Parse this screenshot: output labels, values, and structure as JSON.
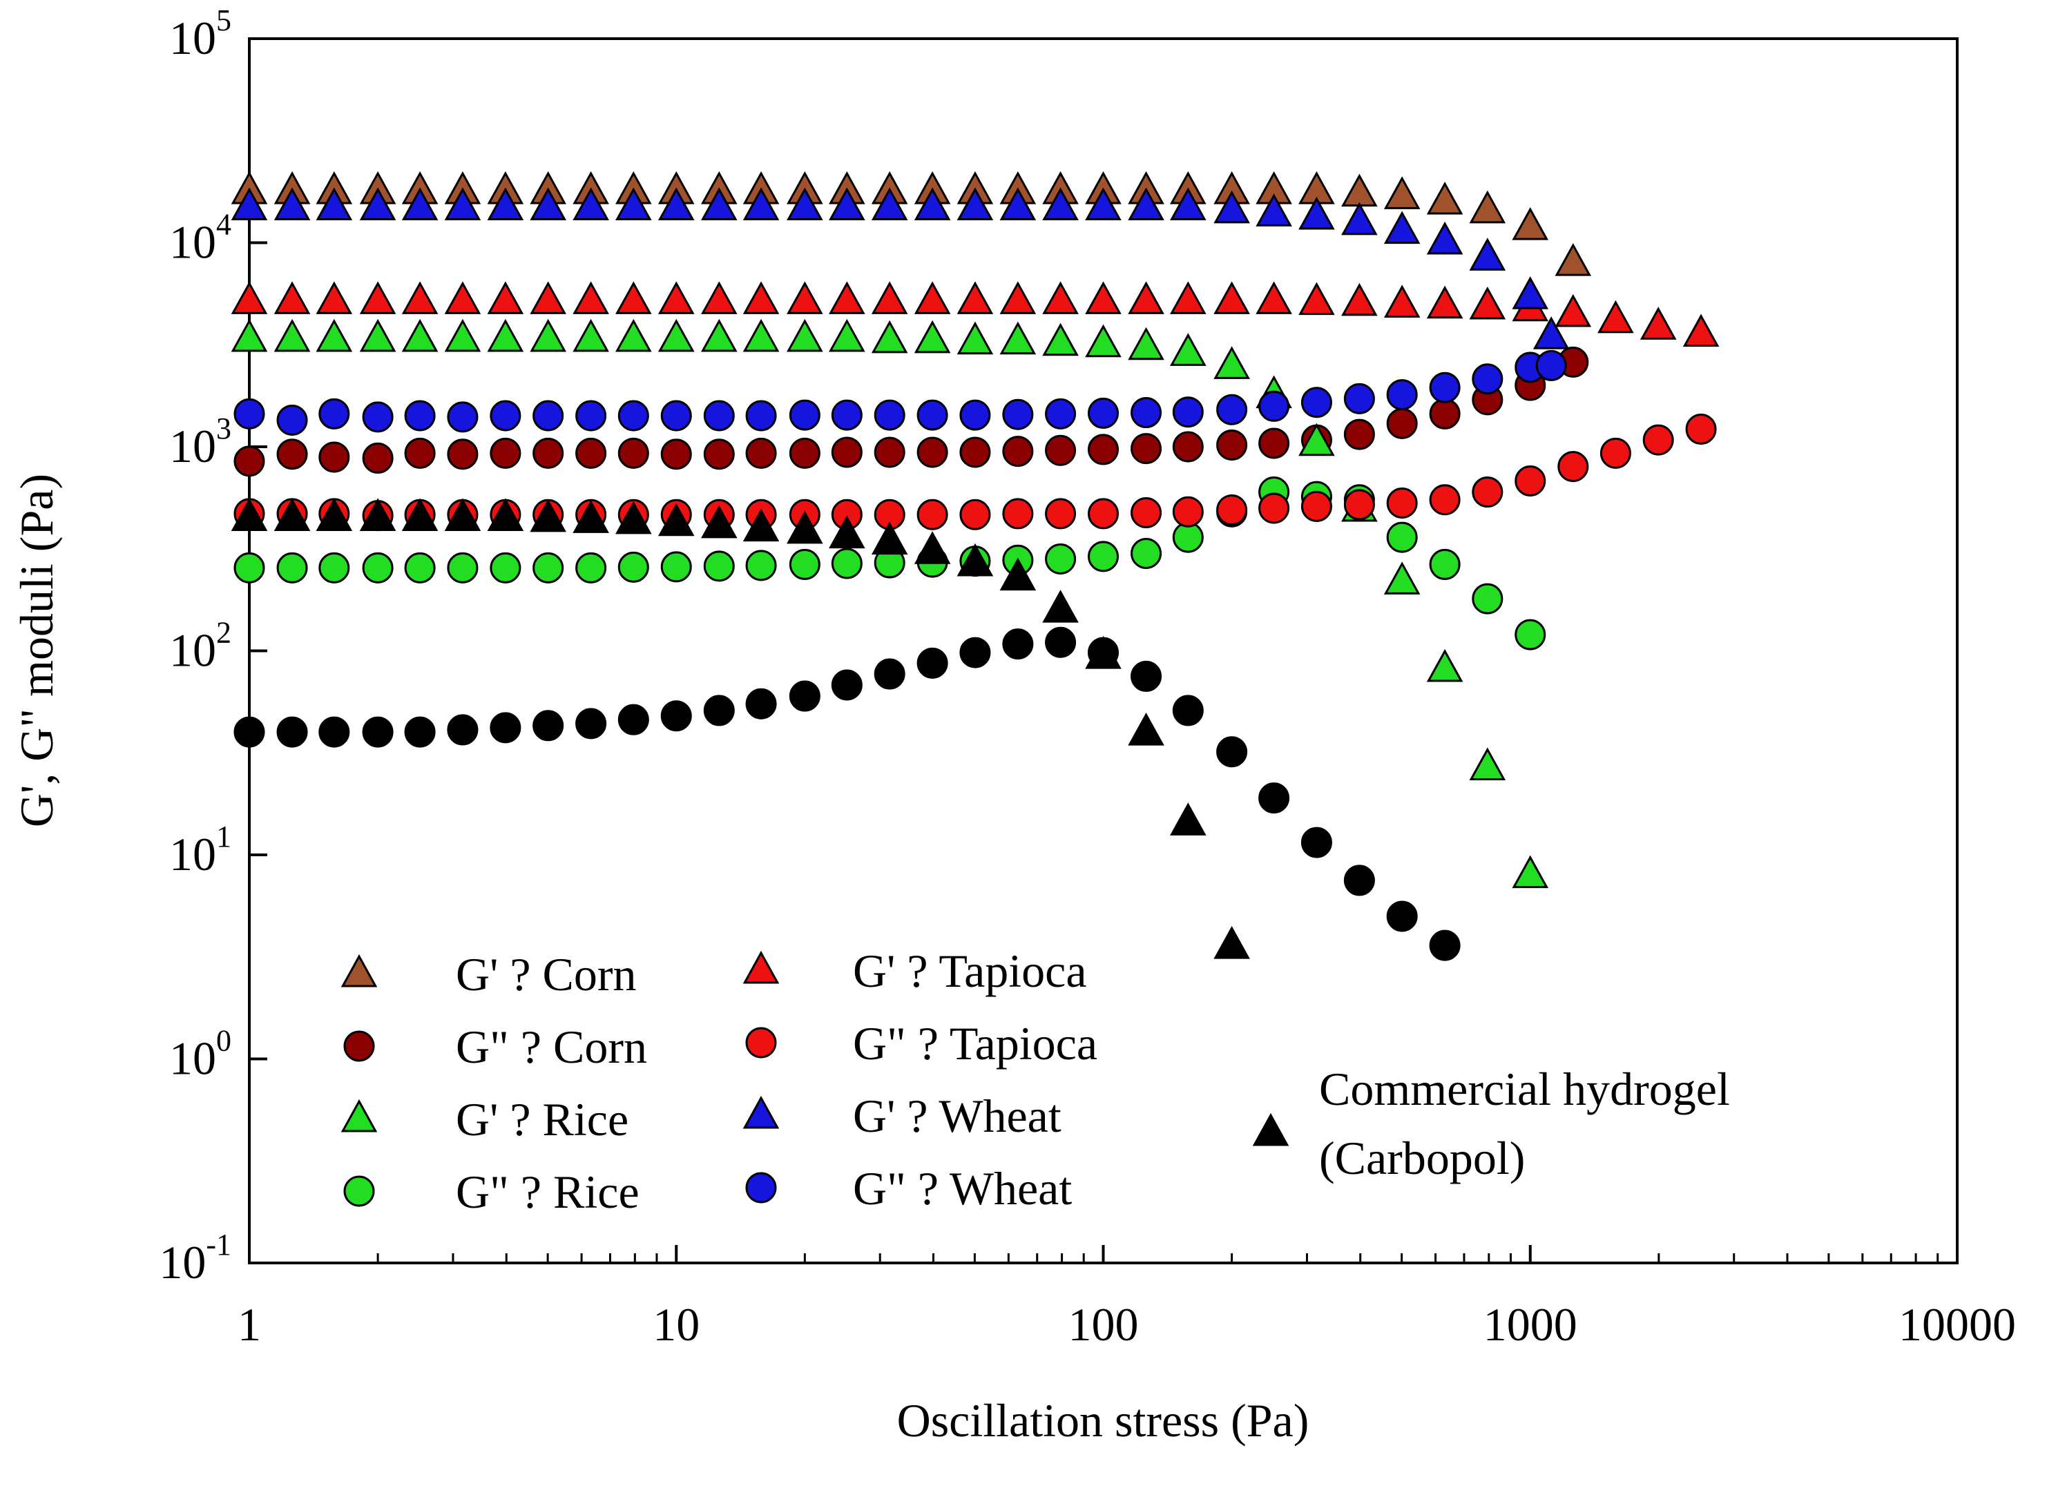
{
  "chart_data": {
    "type": "scatter",
    "x_scale": "log",
    "y_scale": "log",
    "xlabel": "Oscillation stress (Pa)",
    "ylabel": "G', G\" moduli (Pa)",
    "xlim": [
      1,
      10000
    ],
    "ylim": [
      0.1,
      100000
    ],
    "x_ticks": [
      {
        "value": 1,
        "label": "1"
      },
      {
        "value": 10,
        "label": "10"
      },
      {
        "value": 100,
        "label": "100"
      },
      {
        "value": 1000,
        "label": "1000"
      },
      {
        "value": 10000,
        "label": "10000"
      }
    ],
    "y_ticks": [
      {
        "value": 0.1,
        "base": "10",
        "exp": "-1"
      },
      {
        "value": 1,
        "base": "10",
        "exp": "0"
      },
      {
        "value": 10,
        "base": "10",
        "exp": "1"
      },
      {
        "value": 100,
        "base": "10",
        "exp": "2"
      },
      {
        "value": 1000,
        "base": "10",
        "exp": "3"
      },
      {
        "value": 10000,
        "base": "10",
        "exp": "4"
      },
      {
        "value": 100000,
        "base": "10",
        "exp": "5"
      }
    ],
    "grid": false,
    "legend_position": "bottom-left",
    "series": [
      {
        "name": "G' ? Corn",
        "marker": "triangle",
        "color": "#a0522d",
        "x": [
          1,
          1.26,
          1.58,
          2,
          2.51,
          3.16,
          3.98,
          5.01,
          6.31,
          7.94,
          10,
          12.6,
          15.8,
          20,
          25.1,
          31.6,
          39.8,
          50.1,
          63.1,
          79.4,
          100,
          126,
          158,
          200,
          251,
          316,
          398,
          501,
          631,
          794,
          1000,
          1260
        ],
        "y": [
          18000,
          18000,
          18000,
          18000,
          18000,
          18000,
          18000,
          18000,
          18000,
          18000,
          18000,
          18000,
          18000,
          18000,
          18000,
          18000,
          18000,
          18000,
          18000,
          18000,
          18000,
          18000,
          18000,
          18000,
          18000,
          18000,
          17500,
          17000,
          16000,
          14500,
          12000,
          8000
        ]
      },
      {
        "name": "G\" ? Corn",
        "marker": "circle",
        "color": "#8b0000",
        "x": [
          1,
          1.26,
          1.58,
          2,
          2.51,
          3.16,
          3.98,
          5.01,
          6.31,
          7.94,
          10,
          12.6,
          15.8,
          20,
          25.1,
          31.6,
          39.8,
          50.1,
          63.1,
          79.4,
          100,
          126,
          158,
          200,
          251,
          316,
          398,
          501,
          631,
          794,
          1000,
          1260
        ],
        "y": [
          850,
          920,
          890,
          880,
          930,
          920,
          930,
          930,
          930,
          930,
          920,
          920,
          930,
          930,
          940,
          940,
          940,
          940,
          950,
          960,
          970,
          980,
          1000,
          1020,
          1040,
          1080,
          1150,
          1300,
          1450,
          1700,
          2000,
          2600
        ]
      },
      {
        "name": "G' ? Rice",
        "marker": "triangle",
        "color": "#22dd22",
        "x": [
          1,
          1.26,
          1.58,
          2,
          2.51,
          3.16,
          3.98,
          5.01,
          6.31,
          7.94,
          10,
          12.6,
          15.8,
          20,
          25.1,
          31.6,
          39.8,
          50.1,
          63.1,
          79.4,
          100,
          126,
          158,
          200,
          251,
          316,
          398,
          501,
          631,
          794,
          1000
        ],
        "y": [
          3400,
          3400,
          3400,
          3400,
          3400,
          3400,
          3400,
          3400,
          3400,
          3400,
          3400,
          3400,
          3400,
          3400,
          3400,
          3350,
          3350,
          3300,
          3300,
          3250,
          3200,
          3100,
          2900,
          2500,
          1800,
          1050,
          500,
          220,
          82,
          27,
          8
        ]
      },
      {
        "name": "G\" ? Rice",
        "marker": "circle",
        "color": "#22dd22",
        "x": [
          1,
          1.26,
          1.58,
          2,
          2.51,
          3.16,
          3.98,
          5.01,
          6.31,
          7.94,
          10,
          12.6,
          15.8,
          20,
          25.1,
          31.6,
          39.8,
          50.1,
          63.1,
          79.4,
          100,
          126,
          158,
          200,
          251,
          316,
          398,
          501,
          631,
          794,
          1000
        ],
        "y": [
          255,
          255,
          255,
          255,
          255,
          255,
          255,
          255,
          255,
          257,
          258,
          260,
          262,
          265,
          268,
          270,
          272,
          275,
          278,
          282,
          290,
          300,
          360,
          480,
          600,
          570,
          550,
          360,
          265,
          180,
          120
        ]
      },
      {
        "name": "G' ? Tapioca",
        "marker": "triangle",
        "color": "#ee1111",
        "x": [
          1,
          1.26,
          1.58,
          2,
          2.51,
          3.16,
          3.98,
          5.01,
          6.31,
          7.94,
          10,
          12.6,
          15.8,
          20,
          25.1,
          31.6,
          39.8,
          50.1,
          63.1,
          79.4,
          100,
          126,
          158,
          200,
          251,
          316,
          398,
          501,
          631,
          794,
          1000,
          1260,
          1585,
          1995,
          2512
        ],
        "y": [
          5200,
          5200,
          5200,
          5200,
          5200,
          5200,
          5200,
          5200,
          5200,
          5200,
          5200,
          5200,
          5200,
          5200,
          5200,
          5200,
          5200,
          5200,
          5200,
          5200,
          5200,
          5200,
          5200,
          5200,
          5200,
          5150,
          5100,
          5000,
          4950,
          4900,
          4800,
          4500,
          4200,
          3900,
          3600
        ]
      },
      {
        "name": "G\" ? Tapioca",
        "marker": "circle",
        "color": "#ee1111",
        "x": [
          1,
          1.26,
          1.58,
          2,
          2.51,
          3.16,
          3.98,
          5.01,
          6.31,
          7.94,
          10,
          12.6,
          15.8,
          20,
          25.1,
          31.6,
          39.8,
          50.1,
          63.1,
          79.4,
          100,
          126,
          158,
          200,
          251,
          316,
          398,
          501,
          631,
          794,
          1000,
          1260,
          1585,
          1995,
          2512
        ],
        "y": [
          470,
          470,
          470,
          460,
          465,
          465,
          465,
          465,
          465,
          465,
          465,
          465,
          465,
          465,
          465,
          465,
          465,
          465,
          470,
          470,
          470,
          475,
          480,
          490,
          500,
          510,
          520,
          530,
          550,
          600,
          680,
          800,
          930,
          1080,
          1220
        ]
      },
      {
        "name": "G' ? Wheat",
        "marker": "triangle",
        "color": "#1515dd",
        "x": [
          1,
          1.26,
          1.58,
          2,
          2.51,
          3.16,
          3.98,
          5.01,
          6.31,
          7.94,
          10,
          12.6,
          15.8,
          20,
          25.1,
          31.6,
          39.8,
          50.1,
          63.1,
          79.4,
          100,
          126,
          158,
          200,
          251,
          316,
          398,
          501,
          631,
          794,
          1000,
          1120
        ],
        "y": [
          15000,
          15000,
          15000,
          15000,
          15000,
          15000,
          15000,
          15000,
          15000,
          15000,
          15000,
          15000,
          15000,
          15000,
          15000,
          15000,
          15000,
          15000,
          15000,
          15000,
          15000,
          15000,
          15000,
          14500,
          14000,
          13500,
          12700,
          11500,
          10200,
          8500,
          5500,
          3500
        ]
      },
      {
        "name": "G\" ? Wheat",
        "marker": "circle",
        "color": "#1515dd",
        "x": [
          1,
          1.26,
          1.58,
          2,
          2.51,
          3.16,
          3.98,
          5.01,
          6.31,
          7.94,
          10,
          12.6,
          15.8,
          20,
          25.1,
          31.6,
          39.8,
          50.1,
          63.1,
          79.4,
          100,
          126,
          158,
          200,
          251,
          316,
          398,
          501,
          631,
          794,
          1000,
          1120
        ],
        "y": [
          1450,
          1350,
          1450,
          1400,
          1420,
          1400,
          1420,
          1420,
          1420,
          1420,
          1420,
          1420,
          1420,
          1430,
          1430,
          1430,
          1430,
          1430,
          1440,
          1450,
          1460,
          1470,
          1480,
          1520,
          1580,
          1650,
          1720,
          1800,
          1950,
          2150,
          2450,
          2500
        ]
      },
      {
        "name": "Commercial hydrogel (Carbopol) G'",
        "marker": "triangle",
        "color": "#000000",
        "x": [
          1,
          1.26,
          1.58,
          2,
          2.51,
          3.16,
          3.98,
          5.01,
          6.31,
          7.94,
          10,
          12.6,
          15.8,
          20,
          25.1,
          31.6,
          39.8,
          50.1,
          63.1,
          79.4,
          100,
          126,
          158,
          200
        ],
        "y": [
          450,
          450,
          450,
          450,
          450,
          450,
          450,
          445,
          440,
          435,
          425,
          415,
          400,
          390,
          370,
          345,
          310,
          270,
          230,
          160,
          95,
          40,
          14.5,
          3.6
        ]
      },
      {
        "name": "Commercial hydrogel (Carbopol) G\"",
        "marker": "circle",
        "color": "#000000",
        "x": [
          1,
          1.26,
          1.58,
          2,
          2.51,
          3.16,
          3.98,
          5.01,
          6.31,
          7.94,
          10,
          12.6,
          15.8,
          20,
          25.1,
          31.6,
          39.8,
          50.1,
          63.1,
          79.4,
          100,
          126,
          158,
          200,
          251,
          316,
          398,
          501,
          631
        ],
        "y": [
          40,
          40,
          40,
          40,
          40,
          41,
          42,
          43,
          44,
          46,
          48,
          51,
          55,
          60,
          68,
          77,
          87,
          98,
          108,
          110,
          98,
          75,
          51,
          32,
          19,
          11.5,
          7.5,
          5,
          3.6
        ]
      }
    ],
    "legend": [
      {
        "label": "G' ? Corn",
        "marker": "triangle",
        "color": "#a0522d"
      },
      {
        "label": "G\" ? Corn",
        "marker": "circle",
        "color": "#8b0000"
      },
      {
        "label": "G' ? Rice",
        "marker": "triangle",
        "color": "#22dd22"
      },
      {
        "label": "G\" ? Rice",
        "marker": "circle",
        "color": "#22dd22"
      },
      {
        "label": "G' ? Tapioca",
        "marker": "triangle",
        "color": "#ee1111"
      },
      {
        "label": "G\" ? Tapioca",
        "marker": "circle",
        "color": "#ee1111"
      },
      {
        "label": "G' ? Wheat",
        "marker": "triangle",
        "color": "#1515dd"
      },
      {
        "label": "G\" ? Wheat",
        "marker": "circle",
        "color": "#1515dd"
      },
      {
        "label_lines": [
          "Commercial hydrogel",
          "(Carbopol)"
        ],
        "marker": "triangle",
        "color": "#000000"
      }
    ]
  }
}
